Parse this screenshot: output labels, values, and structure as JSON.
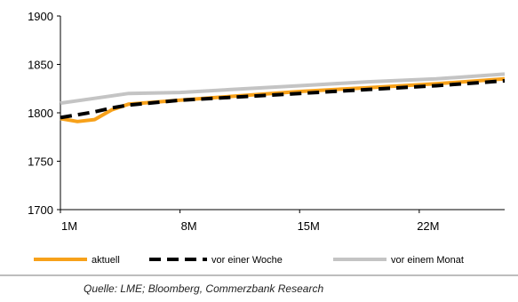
{
  "chart_data": {
    "type": "line",
    "x_tick_labels": [
      "1M",
      "8M",
      "15M",
      "22M"
    ],
    "x_ticks": [
      1,
      8,
      15,
      22
    ],
    "xlim": [
      1,
      27
    ],
    "ylim": [
      1700,
      1900
    ],
    "y_ticks": [
      1700,
      1750,
      1800,
      1850,
      1900
    ],
    "grid": false,
    "legend_position": "bottom",
    "series": [
      {
        "name": "aktuell",
        "color": "#f7a11a",
        "style": "solid",
        "points": [
          [
            1,
            1794
          ],
          [
            2,
            1791
          ],
          [
            3,
            1793
          ],
          [
            4,
            1803
          ],
          [
            5,
            1809
          ],
          [
            8,
            1813
          ],
          [
            11,
            1817
          ],
          [
            15,
            1822
          ],
          [
            19,
            1826
          ],
          [
            23,
            1830
          ],
          [
            27,
            1835
          ]
        ]
      },
      {
        "name": "vor einer Woche",
        "color": "#000000",
        "style": "dashed",
        "points": [
          [
            1,
            1795
          ],
          [
            2,
            1798
          ],
          [
            3,
            1801
          ],
          [
            4,
            1805
          ],
          [
            5,
            1808
          ],
          [
            8,
            1813
          ],
          [
            11,
            1816
          ],
          [
            15,
            1820
          ],
          [
            19,
            1824
          ],
          [
            23,
            1828
          ],
          [
            27,
            1833
          ]
        ]
      },
      {
        "name": "vor einem Monat",
        "color": "#c4c4c4",
        "style": "solid",
        "points": [
          [
            1,
            1810
          ],
          [
            3,
            1815
          ],
          [
            5,
            1820
          ],
          [
            8,
            1821
          ],
          [
            11,
            1824
          ],
          [
            15,
            1828
          ],
          [
            19,
            1832
          ],
          [
            23,
            1835
          ],
          [
            27,
            1840
          ]
        ]
      }
    ]
  },
  "source": "Quelle: LME; Bloomberg, Commerzbank Research"
}
